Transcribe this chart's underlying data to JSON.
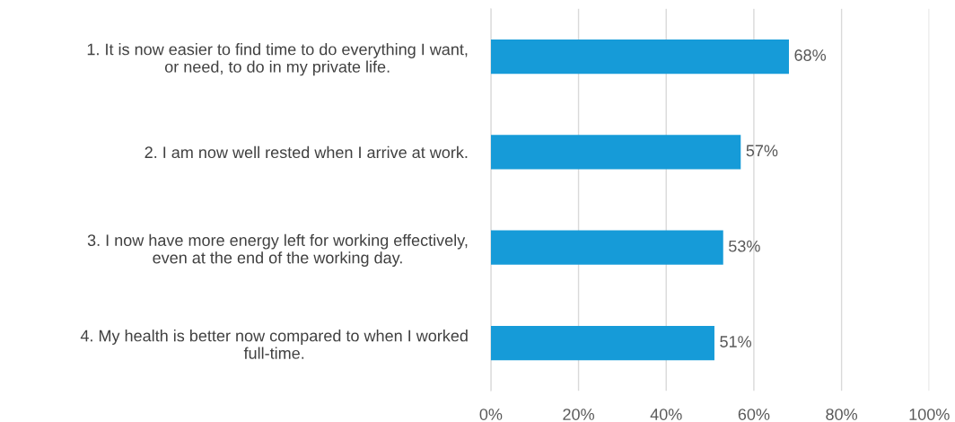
{
  "chart_data": {
    "type": "bar",
    "orientation": "horizontal",
    "categories": [
      "1. It is now easier to find time to do everything I want,\nor need, to do in my private life.",
      "2. I am now well rested when I arrive at work.",
      "3. I now have more energy left for working effectively,\neven at the end of the working day.",
      "4. My health is better now compared to when I worked\nfull-time."
    ],
    "values": [
      68,
      57,
      53,
      51
    ],
    "value_labels": [
      "68%",
      "57%",
      "53%",
      "51%"
    ],
    "color": "#169bd8",
    "xlim": [
      0,
      100
    ],
    "xticks": [
      {
        "value": 0,
        "label": "0%"
      },
      {
        "value": 20,
        "label": "20%"
      },
      {
        "value": 40,
        "label": "40%"
      },
      {
        "value": 60,
        "label": "60%"
      },
      {
        "value": 80,
        "label": "80%"
      },
      {
        "value": 100,
        "label": "100%"
      }
    ],
    "grid": "x",
    "legend": false
  }
}
